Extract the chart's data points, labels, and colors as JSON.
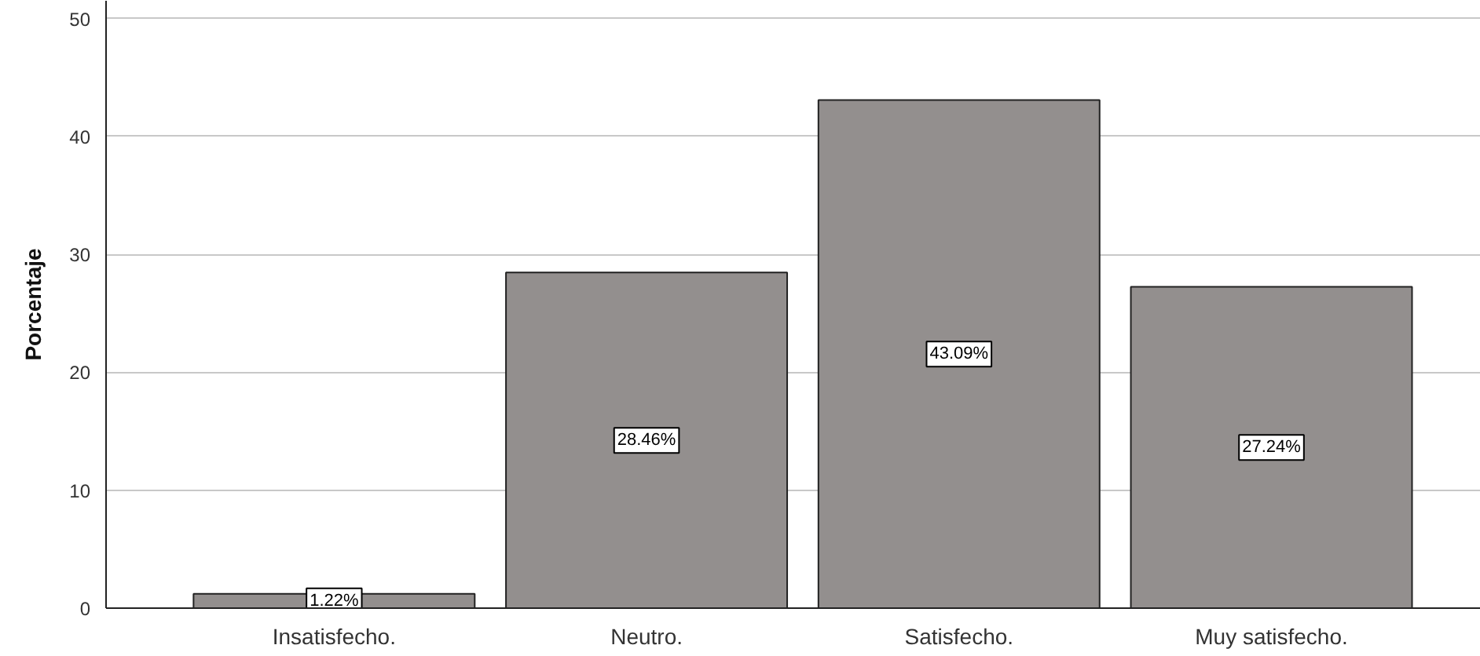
{
  "chart_data": {
    "type": "bar",
    "ylabel": "Porcentaje",
    "categories": [
      "Insatisfecho.",
      "Neutro.",
      "Satisfecho.",
      "Muy satisfecho."
    ],
    "values": [
      1.22,
      28.46,
      43.09,
      27.24
    ],
    "value_labels": [
      "1.22%",
      "28.46%",
      "43.09%",
      "27.24%"
    ],
    "color": "#938f8e",
    "ylim": [
      0,
      51.5
    ],
    "yticks": [
      0,
      10,
      20,
      30,
      40,
      50
    ],
    "grid": "y"
  }
}
